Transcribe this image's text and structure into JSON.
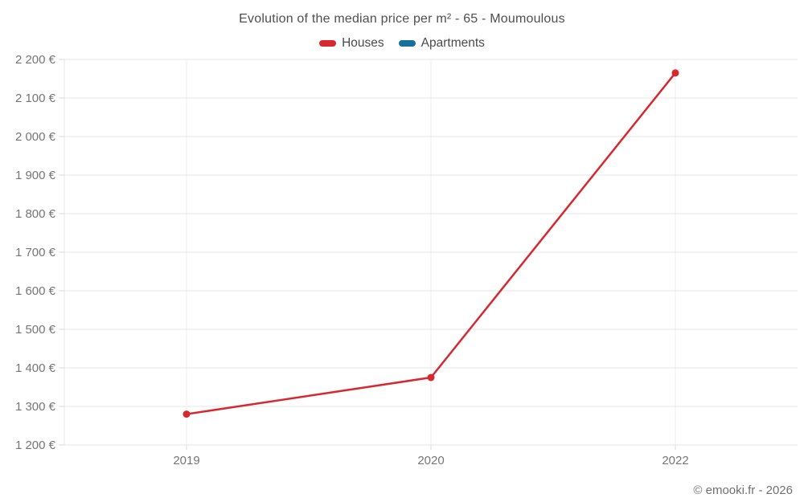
{
  "title": "Evolution of the median price per m² - 65 - Moumoulous",
  "legend": [
    {
      "label": "Houses",
      "color": "#d7282f"
    },
    {
      "label": "Apartments",
      "color": "#176f9e"
    }
  ],
  "footer": "© emooki.fr - 2026",
  "colors": {
    "houses": "#d7282f",
    "apartments": "#176f9e",
    "gridline": "#e6e6e6",
    "tick": "#d9d9d9",
    "axis_text": "#757575"
  },
  "chart_data": {
    "type": "line",
    "title": "Evolution of the median price per m² - 65 - Moumoulous",
    "categories": [
      "2019",
      "2020",
      "2022"
    ],
    "series": [
      {
        "name": "Houses",
        "color": "#d7282f",
        "values": [
          1280,
          1375,
          2165
        ]
      },
      {
        "name": "Apartments",
        "color": "#176f9e",
        "values": []
      }
    ],
    "xlabel": "",
    "ylabel": "",
    "ylim": [
      1200,
      2200
    ],
    "ytick_step": 100,
    "y_tick_labels": [
      "1 200 €",
      "1 300 €",
      "1 400 €",
      "1 500 €",
      "1 600 €",
      "1 700 €",
      "1 800 €",
      "1 900 €",
      "2 000 €",
      "2 100 €",
      "2 200 €"
    ],
    "grid": true,
    "legend_position": "top",
    "marker": "circle"
  }
}
